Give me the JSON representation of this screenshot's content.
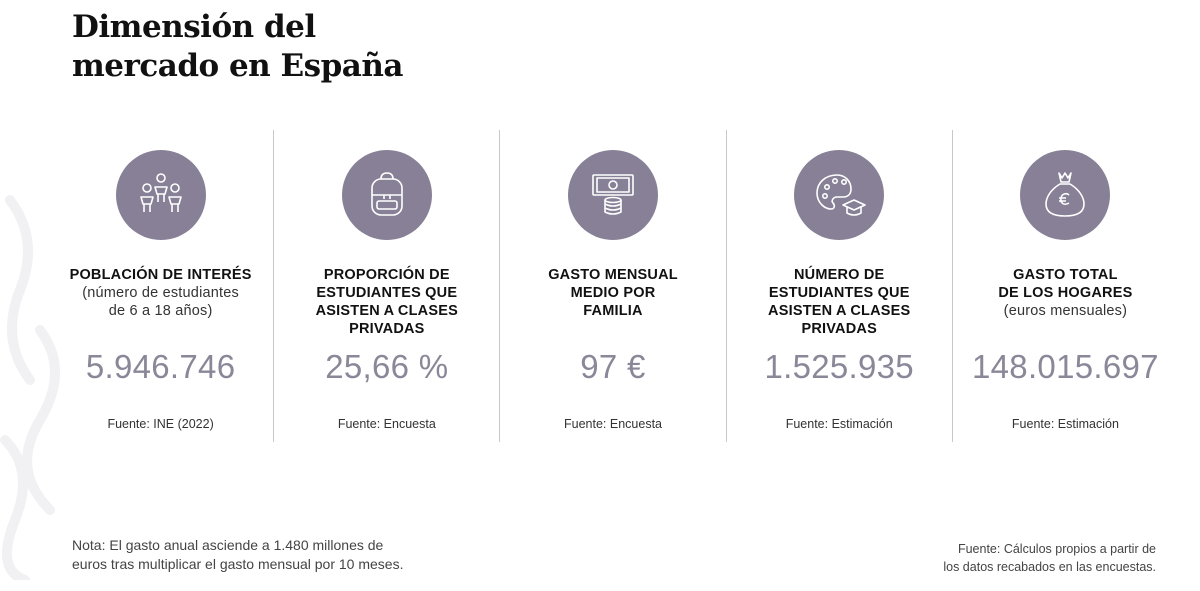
{
  "title": {
    "line1": "Dimensión del",
    "line2": "mercado en España"
  },
  "columns": [
    {
      "icon": "people-icon",
      "heading": [
        "POBLACIÓN DE INTERÉS"
      ],
      "sub": [
        "(número de estudiantes",
        "de 6 a 18 años)"
      ],
      "value": "5.946.746",
      "source": "Fuente: INE (2022)"
    },
    {
      "icon": "backpack-icon",
      "heading": [
        "PROPORCIÓN DE",
        "ESTUDIANTES QUE",
        "ASISTEN A CLASES",
        "PRIVADAS"
      ],
      "sub": [],
      "value": "25,66 %",
      "source": "Fuente: Encuesta"
    },
    {
      "icon": "money-icon",
      "heading": [
        "GASTO MENSUAL",
        "MEDIO POR",
        "FAMILIA"
      ],
      "sub": [],
      "value": "97 €",
      "source": "Fuente: Encuesta"
    },
    {
      "icon": "palette-graduation-icon",
      "heading": [
        "NÚMERO DE",
        "ESTUDIANTES QUE",
        "ASISTEN A CLASES",
        "PRIVADAS"
      ],
      "sub": [],
      "value": "1.525.935",
      "source": "Fuente: Estimación"
    },
    {
      "icon": "money-bag-icon",
      "heading": [
        "GASTO TOTAL",
        "DE LOS HOGARES"
      ],
      "sub": [
        "(euros mensuales)"
      ],
      "value": "148.015.697",
      "source": "Fuente: Estimación"
    }
  ],
  "note": {
    "line1": "Nota: El gasto anual asciende a 1.480 millones de",
    "line2": "euros tras multiplicar el gasto mensual por 10 meses."
  },
  "footer": {
    "line1": "Fuente: Cálculos propios a partir de",
    "line2": "los datos recabados en las encuestas."
  },
  "colors": {
    "icon_circle": "#878096",
    "value_text": "#8a8798",
    "divider": "#c8c8cc"
  }
}
